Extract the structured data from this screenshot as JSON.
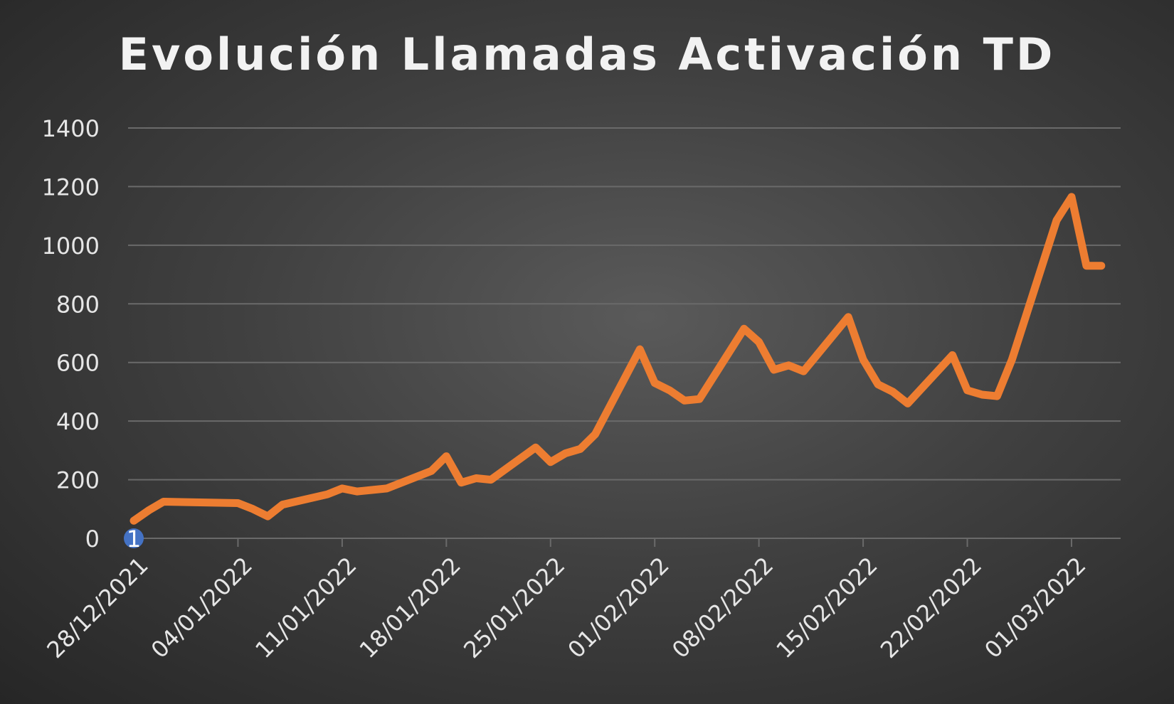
{
  "chart_data": {
    "type": "line",
    "title": "Evolución Llamadas Activación TD",
    "xlabel": "",
    "ylabel": "",
    "ylim": [
      0,
      1400
    ],
    "yticks": [
      0,
      200,
      400,
      600,
      800,
      1000,
      1200,
      1400
    ],
    "xticks": [
      "28/12/2021",
      "04/01/2022",
      "11/01/2022",
      "18/01/2022",
      "25/01/2022",
      "01/02/2022",
      "08/02/2022",
      "15/02/2022",
      "22/02/2022",
      "01/03/2022"
    ],
    "grid": true,
    "legend": "none",
    "colors": {
      "line": "#ed7d31",
      "marker": "#4472c4",
      "grid": "#6a6a6a",
      "text": "#e6e6e6"
    },
    "annotation": {
      "label": "1",
      "x": "28/12/2021",
      "y": 0
    },
    "series": [
      {
        "x": [
          "28/12/2021",
          "29/12/2021",
          "30/12/2021",
          "04/01/2022",
          "05/01/2022",
          "06/01/2022",
          "07/01/2022",
          "10/01/2022",
          "11/01/2022",
          "12/01/2022",
          "13/01/2022",
          "14/01/2022",
          "17/01/2022",
          "18/01/2022",
          "19/01/2022",
          "20/01/2022",
          "21/01/2022",
          "24/01/2022",
          "25/01/2022",
          "26/01/2022",
          "27/01/2022",
          "28/01/2022",
          "31/01/2022",
          "01/02/2022",
          "02/02/2022",
          "03/02/2022",
          "04/02/2022",
          "07/02/2022",
          "08/02/2022",
          "09/02/2022",
          "10/02/2022",
          "11/02/2022",
          "14/02/2022",
          "15/02/2022",
          "16/02/2022",
          "17/02/2022",
          "18/02/2022",
          "21/02/2022",
          "22/02/2022",
          "23/02/2022",
          "24/02/2022",
          "25/02/2022",
          "28/02/2022",
          "01/03/2022",
          "02/03/2022",
          "03/03/2022"
        ],
        "values": [
          60,
          95,
          125,
          120,
          100,
          75,
          115,
          150,
          170,
          160,
          165,
          170,
          230,
          280,
          190,
          205,
          200,
          310,
          260,
          290,
          305,
          355,
          645,
          530,
          505,
          470,
          475,
          715,
          670,
          575,
          590,
          570,
          755,
          610,
          525,
          500,
          460,
          625,
          505,
          490,
          485,
          610,
          1085,
          1165,
          930,
          930
        ]
      }
    ]
  }
}
